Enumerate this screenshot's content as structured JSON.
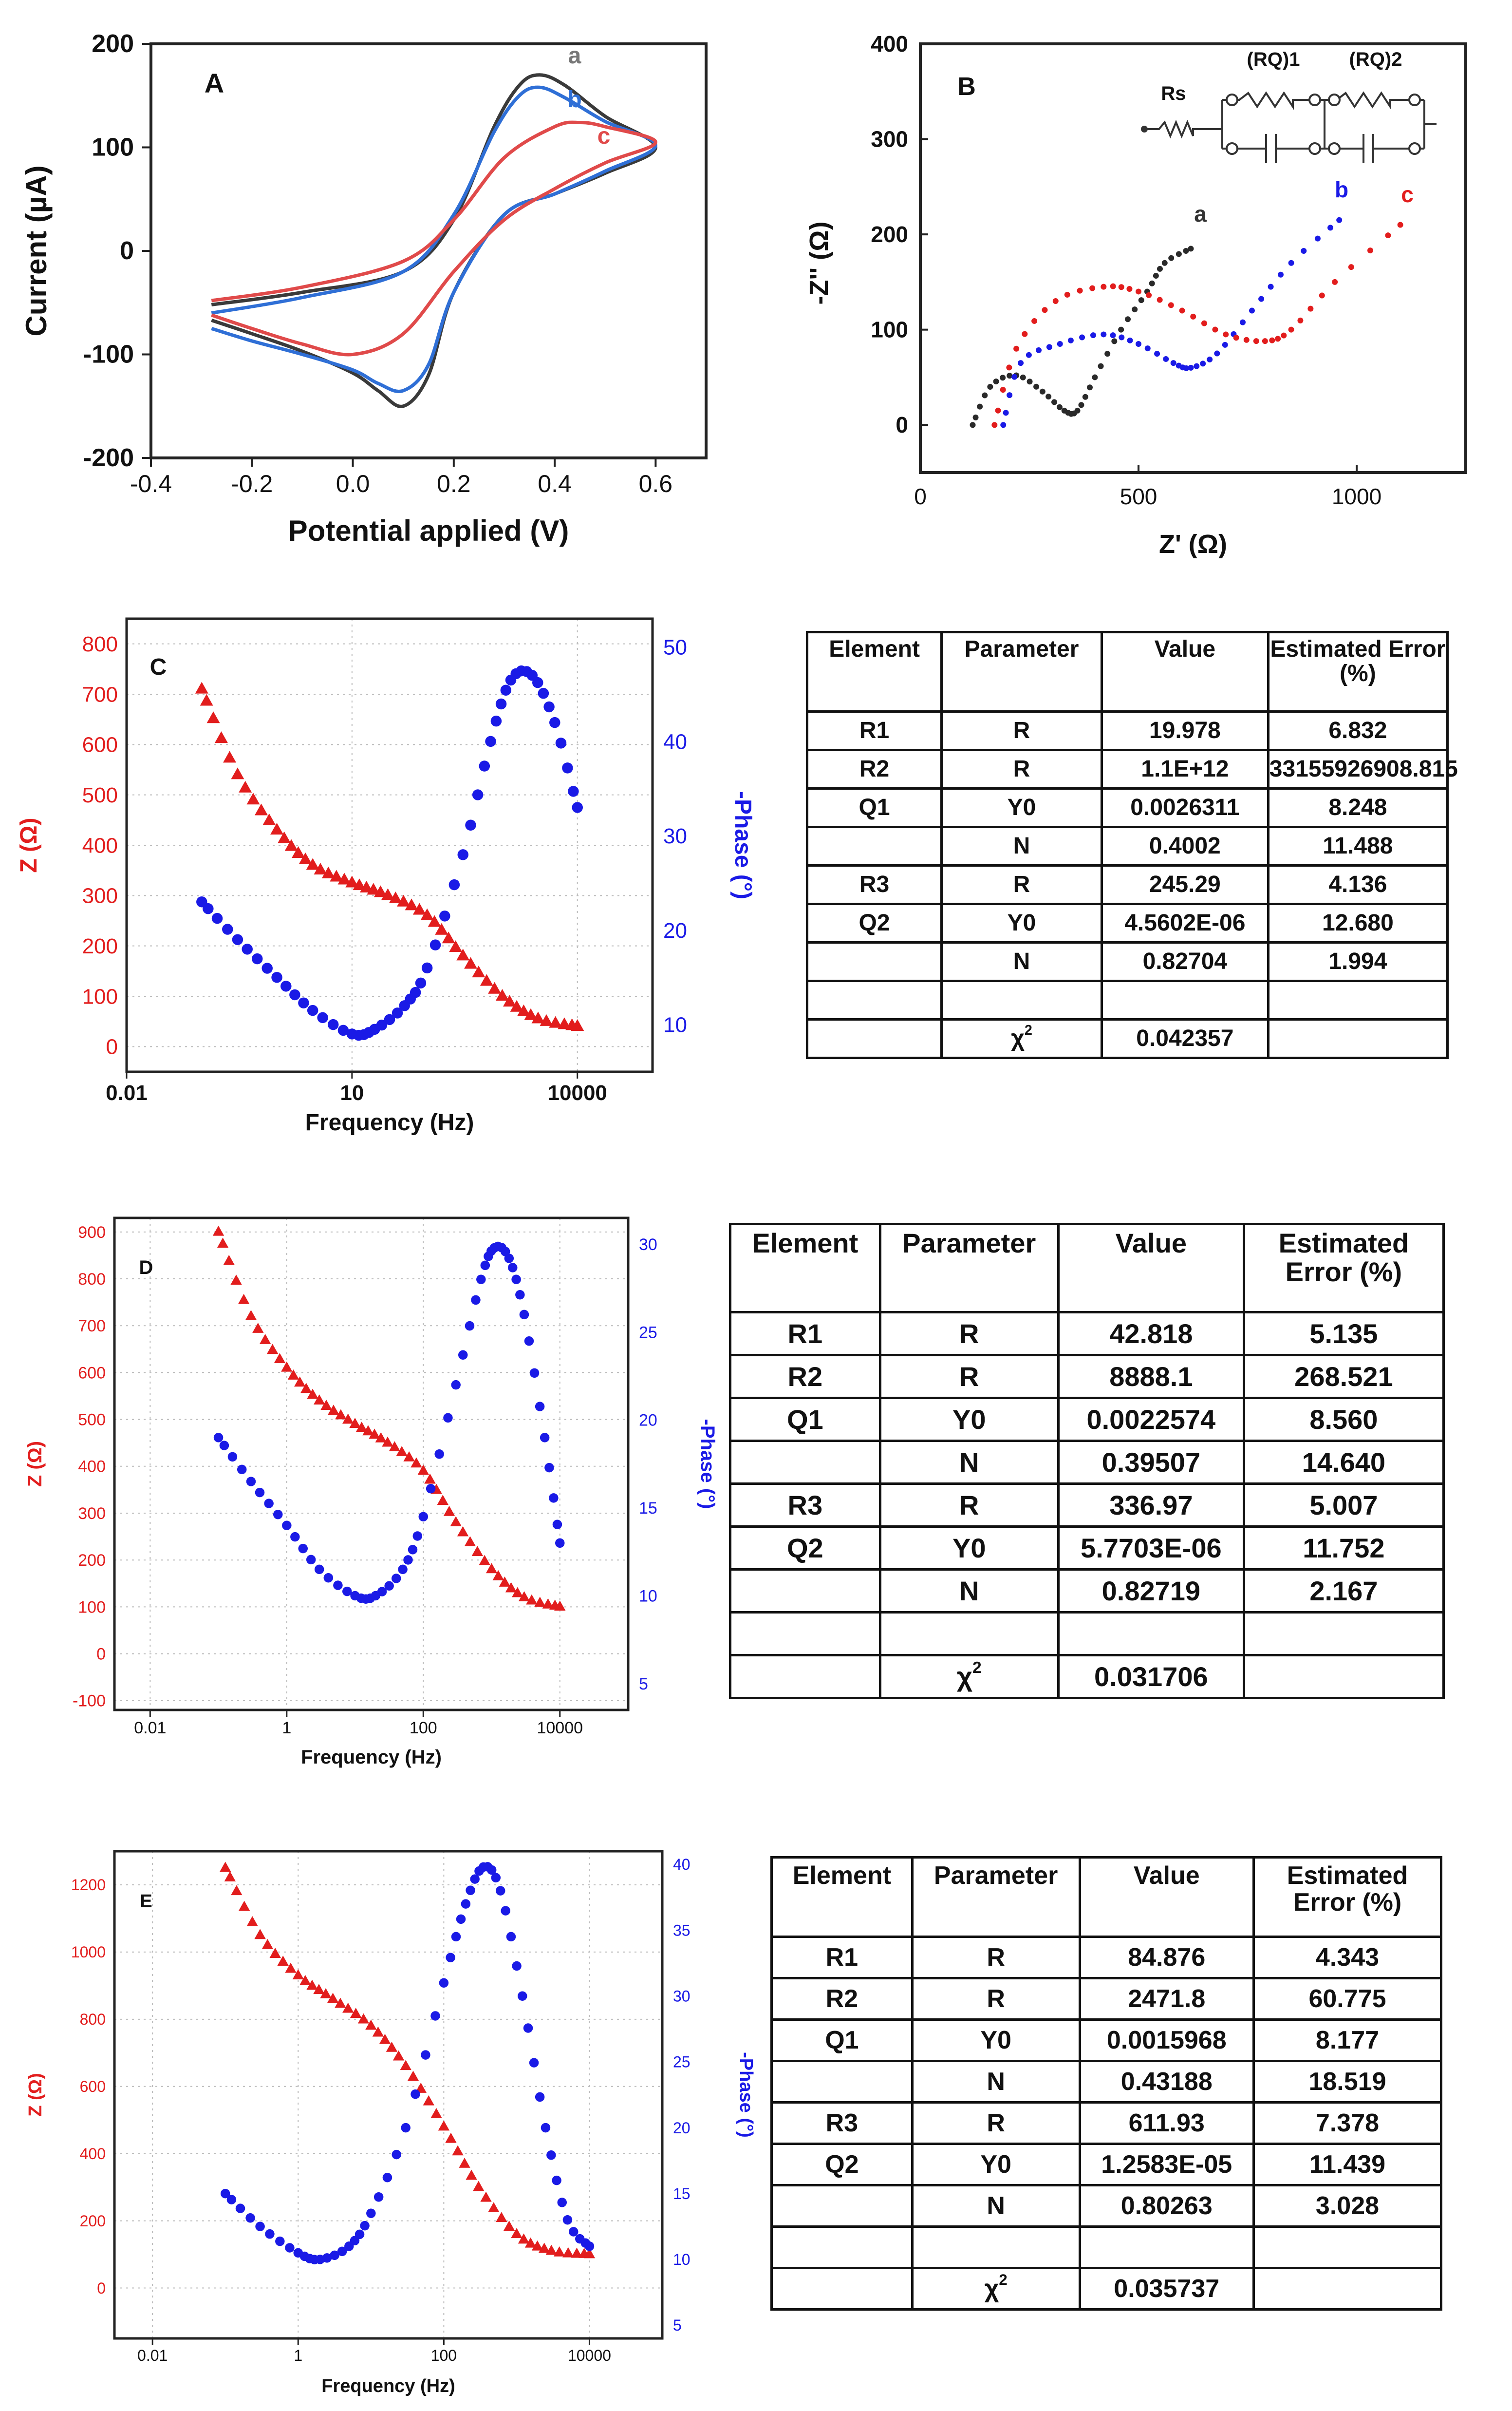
{
  "colors": {
    "red": "#e21d1d",
    "blue": "#1a1ae6",
    "black": "#2a2a2a",
    "cvA": "#3a3a3a",
    "cvB": "#2f6fd6",
    "cvC": "#e04a4a"
  },
  "chart_data": [
    {
      "panel": "A",
      "type": "line",
      "title": "",
      "xlabel": "Potential applied (V)",
      "ylabel": "Current (µA)",
      "xlim": [
        -0.4,
        0.7
      ],
      "ylim": [
        -200,
        200
      ],
      "xticks": [
        "-0.4",
        "-0.2",
        "0.0",
        "0.2",
        "0.4",
        "0.6"
      ],
      "yticks": [
        "200",
        "100",
        "0",
        "-100",
        "-200"
      ],
      "series": [
        {
          "name": "a",
          "x": [
            -0.28,
            -0.1,
            0.1,
            0.2,
            0.28,
            0.33,
            0.37,
            0.42,
            0.5,
            0.6,
            0.5,
            0.4,
            0.3,
            0.2,
            0.15,
            0.1,
            0.05,
            0.0,
            -0.1,
            -0.2,
            -0.28
          ],
          "y": [
            -52,
            -40,
            -20,
            30,
            120,
            160,
            170,
            160,
            130,
            100,
            75,
            55,
            35,
            -40,
            -120,
            -150,
            -135,
            -118,
            -97,
            -80,
            -67
          ]
        },
        {
          "name": "b",
          "x": [
            -0.28,
            -0.1,
            0.1,
            0.2,
            0.28,
            0.33,
            0.37,
            0.42,
            0.5,
            0.6,
            0.5,
            0.4,
            0.3,
            0.2,
            0.15,
            0.1,
            0.05,
            0.0,
            -0.1,
            -0.2,
            -0.28
          ],
          "y": [
            -60,
            -45,
            -20,
            35,
            115,
            150,
            158,
            148,
            125,
            102,
            77,
            55,
            35,
            -40,
            -110,
            -135,
            -128,
            -115,
            -100,
            -87,
            -75
          ]
        },
        {
          "name": "c",
          "x": [
            -0.28,
            -0.1,
            0.1,
            0.2,
            0.3,
            0.4,
            0.45,
            0.5,
            0.6,
            0.5,
            0.4,
            0.3,
            0.2,
            0.1,
            0.0,
            -0.1,
            -0.2,
            -0.28
          ],
          "y": [
            -48,
            -35,
            -10,
            30,
            90,
            120,
            124,
            120,
            105,
            85,
            60,
            30,
            -20,
            -80,
            -100,
            -90,
            -75,
            -62
          ]
        }
      ],
      "labels": {
        "panel": "A",
        "a": "a",
        "b": "b",
        "c": "c"
      }
    },
    {
      "panel": "B",
      "type": "scatter",
      "title": "",
      "xlabel": "Z' (Ω)",
      "ylabel": "-Z'' (Ω)",
      "xlim": [
        0,
        1250
      ],
      "ylim": [
        -50,
        400
      ],
      "xticks": [
        "0",
        "500",
        "1000"
      ],
      "yticks": [
        "400",
        "300",
        "200",
        "100",
        "0"
      ],
      "series": [
        {
          "name": "a",
          "x": [
            120,
            160,
            220,
            280,
            330,
            360,
            400,
            460,
            520,
            560,
            620
          ],
          "y": [
            0,
            40,
            52,
            35,
            15,
            15,
            50,
            100,
            140,
            170,
            185
          ]
        },
        {
          "name": "b",
          "x": [
            190,
            230,
            320,
            420,
            500,
            580,
            620,
            680,
            760,
            850,
            960
          ],
          "y": [
            0,
            65,
            85,
            95,
            85,
            65,
            60,
            75,
            120,
            170,
            215
          ]
        },
        {
          "name": "c",
          "x": [
            170,
            220,
            310,
            420,
            500,
            600,
            700,
            790,
            850,
            950,
            1100
          ],
          "y": [
            0,
            80,
            130,
            145,
            140,
            120,
            95,
            88,
            100,
            150,
            210
          ]
        }
      ],
      "labels": {
        "panel": "B",
        "a": "a",
        "b": "b",
        "c": "c"
      },
      "circuit": {
        "rs": "Rs",
        "rq1": "(RQ)1",
        "rq2": "(RQ)2"
      }
    },
    {
      "panel": "C",
      "type": "scatter",
      "xscale": "log",
      "xlabel": "Frequency (Hz)",
      "ylabel": "Z (Ω)",
      "y2label": "-Phase (°)",
      "xlim": [
        0.01,
        100000
      ],
      "ylim": [
        -50,
        850
      ],
      "y2lim": [
        5,
        53
      ],
      "xticks": [
        "0.01",
        "10",
        "10000"
      ],
      "yticks": [
        "800",
        "700",
        "600",
        "500",
        "400",
        "300",
        "200",
        "100",
        "0"
      ],
      "y2ticks": [
        "50",
        "40",
        "30",
        "20",
        "10"
      ],
      "z": {
        "x": [
          0.1,
          0.3,
          1,
          3,
          10,
          30,
          100,
          300,
          1000,
          3000,
          10000
        ],
        "y": [
          710,
          540,
          430,
          360,
          325,
          300,
          260,
          180,
          100,
          55,
          40
        ]
      },
      "phase": {
        "x": [
          0.1,
          0.3,
          1,
          3,
          10,
          20,
          50,
          100,
          300,
          700,
          1300,
          2500,
          5000,
          10000
        ],
        "y": [
          23,
          19,
          15,
          11.5,
          9,
          9.5,
          12,
          16,
          28,
          40,
          46.5,
          47,
          42,
          33
        ]
      },
      "labels": {
        "panel": "C"
      }
    },
    {
      "panel": "D",
      "type": "scatter",
      "xscale": "log",
      "xlabel": "Frequency (Hz)",
      "ylabel": "Z (Ω)",
      "y2label": "-Phase (°)",
      "xlim": [
        0.003,
        100000
      ],
      "ylim": [
        -120,
        930
      ],
      "y2lim": [
        3.5,
        31.5
      ],
      "xticks": [
        "0.01",
        "1",
        "100",
        "10000"
      ],
      "yticks": [
        "900",
        "800",
        "700",
        "600",
        "500",
        "400",
        "300",
        "200",
        "100",
        "0",
        "-100"
      ],
      "y2ticks": [
        "30",
        "25",
        "20",
        "15",
        "10",
        "5"
      ],
      "z": {
        "x": [
          0.1,
          0.3,
          1,
          3,
          10,
          30,
          100,
          300,
          1000,
          3000,
          10000
        ],
        "y": [
          900,
          720,
          610,
          540,
          490,
          450,
          390,
          280,
          180,
          120,
          100
        ]
      },
      "phase": {
        "x": [
          0.1,
          0.3,
          1,
          3,
          10,
          20,
          50,
          100,
          300,
          700,
          1100,
          1800,
          3000,
          6000,
          10000
        ],
        "y": [
          19,
          16.5,
          14,
          11.5,
          10,
          10,
          11.5,
          14.5,
          22,
          28,
          29.8,
          29.2,
          26,
          19,
          13
        ]
      },
      "labels": {
        "panel": "D"
      }
    },
    {
      "panel": "E",
      "type": "scatter",
      "xscale": "log",
      "xlabel": "Frequency (Hz)",
      "ylabel": "Z (Ω)",
      "y2label": "-Phase (°)",
      "xlim": [
        0.003,
        100000
      ],
      "ylim": [
        -150,
        1300
      ],
      "y2lim": [
        4,
        41
      ],
      "xticks": [
        "0.01",
        "1",
        "100",
        "10000"
      ],
      "yticks": [
        "1200",
        "1000",
        "800",
        "600",
        "400",
        "200",
        "0"
      ],
      "y2ticks": [
        "40",
        "35",
        "30",
        "25",
        "20",
        "15",
        "10",
        "5"
      ],
      "z": {
        "x": [
          0.1,
          0.3,
          1,
          3,
          10,
          30,
          100,
          300,
          1000,
          3000,
          10000
        ],
        "y": [
          1250,
          1050,
          930,
          860,
          780,
          660,
          480,
          300,
          160,
          110,
          100
        ]
      },
      "phase": {
        "x": [
          0.1,
          0.3,
          1,
          2,
          5,
          10,
          30,
          100,
          200,
          350,
          600,
          1200,
          2500,
          5000,
          10000
        ],
        "y": [
          15,
          12.5,
          10.5,
          10,
          11,
          13.5,
          20,
          31,
          37,
          39.8,
          38,
          30,
          20,
          13,
          11
        ]
      },
      "labels": {
        "panel": "E"
      }
    }
  ],
  "tables": {
    "C": {
      "headers": [
        "Element",
        "Parameter",
        "Value",
        "Estimated Error (%)"
      ],
      "rows": [
        [
          "R1",
          "R",
          "19.978",
          "6.832"
        ],
        [
          "R2",
          "R",
          "1.1E+12",
          "33155926908.815"
        ],
        [
          "Q1",
          "Y0",
          "0.0026311",
          "8.248"
        ],
        [
          "",
          "N",
          "0.4002",
          "11.488"
        ],
        [
          "R3",
          "R",
          "245.29",
          "4.136"
        ],
        [
          "Q2",
          "Y0",
          "4.5602E-06",
          "12.680"
        ],
        [
          "",
          "N",
          "0.82704",
          "1.994"
        ],
        [
          "",
          "",
          "",
          ""
        ]
      ],
      "chi_label": "χ",
      "chi_sup": "2",
      "chi_value": "0.042357"
    },
    "D": {
      "headers": [
        "Element",
        "Parameter",
        "Value",
        "Estimated Error (%)"
      ],
      "rows": [
        [
          "R1",
          "R",
          "42.818",
          "5.135"
        ],
        [
          "R2",
          "R",
          "8888.1",
          "268.521"
        ],
        [
          "Q1",
          "Y0",
          "0.0022574",
          "8.560"
        ],
        [
          "",
          "N",
          "0.39507",
          "14.640"
        ],
        [
          "R3",
          "R",
          "336.97",
          "5.007"
        ],
        [
          "Q2",
          "Y0",
          "5.7703E-06",
          "11.752"
        ],
        [
          "",
          "N",
          "0.82719",
          "2.167"
        ],
        [
          "",
          "",
          "",
          ""
        ]
      ],
      "chi_label": "χ",
      "chi_sup": "2",
      "chi_value": "0.031706"
    },
    "E": {
      "headers": [
        "Element",
        "Parameter",
        "Value",
        "Estimated Error (%)"
      ],
      "rows": [
        [
          "R1",
          "R",
          "84.876",
          "4.343"
        ],
        [
          "R2",
          "R",
          "2471.8",
          "60.775"
        ],
        [
          "Q1",
          "Y0",
          "0.0015968",
          "8.177"
        ],
        [
          "",
          "N",
          "0.43188",
          "18.519"
        ],
        [
          "R3",
          "R",
          "611.93",
          "7.378"
        ],
        [
          "Q2",
          "Y0",
          "1.2583E-05",
          "11.439"
        ],
        [
          "",
          "N",
          "0.80263",
          "3.028"
        ],
        [
          "",
          "",
          "",
          ""
        ]
      ],
      "chi_label": "χ",
      "chi_sup": "2",
      "chi_value": "0.035737"
    }
  }
}
